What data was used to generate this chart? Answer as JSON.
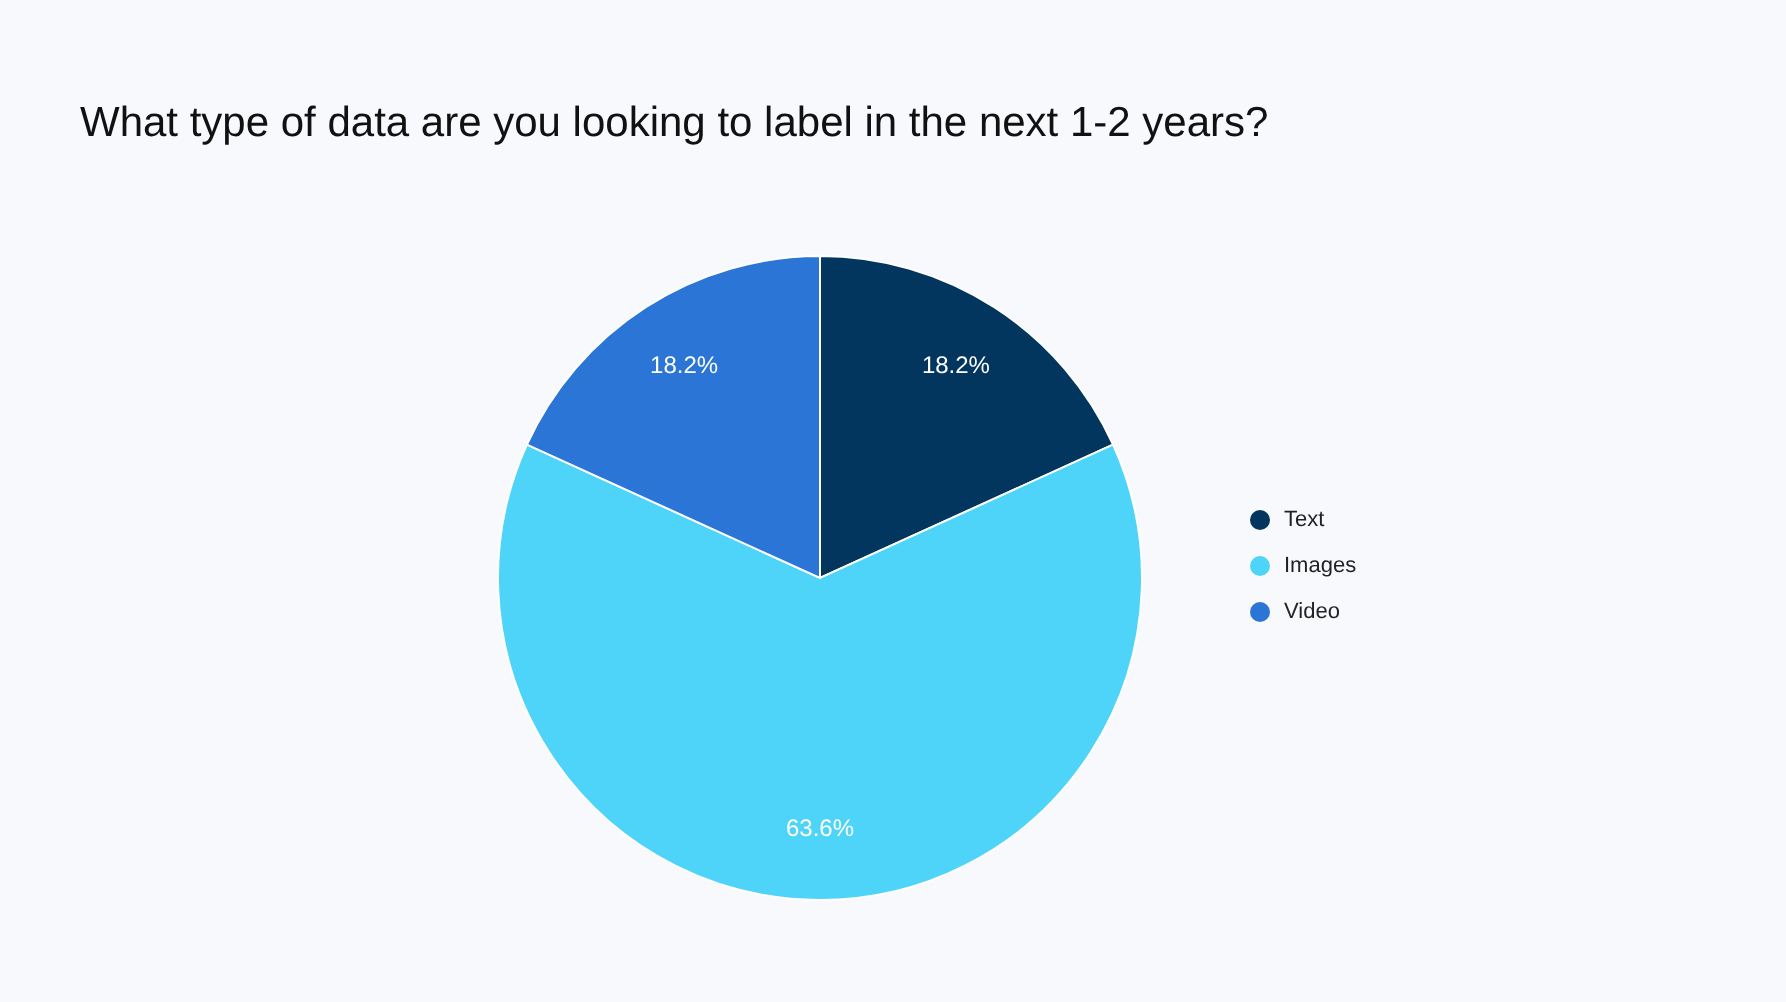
{
  "chart_data": {
    "type": "pie",
    "title": "What type of data are you looking to label in the next 1-2 years?",
    "categories": [
      "Text",
      "Images",
      "Video"
    ],
    "values": [
      18.2,
      63.6,
      18.2
    ],
    "colors": [
      "#03365f",
      "#4fd4f9",
      "#2a75d5"
    ],
    "value_labels": [
      "18.2%",
      "63.6%",
      "18.2%"
    ],
    "legend": "right"
  }
}
